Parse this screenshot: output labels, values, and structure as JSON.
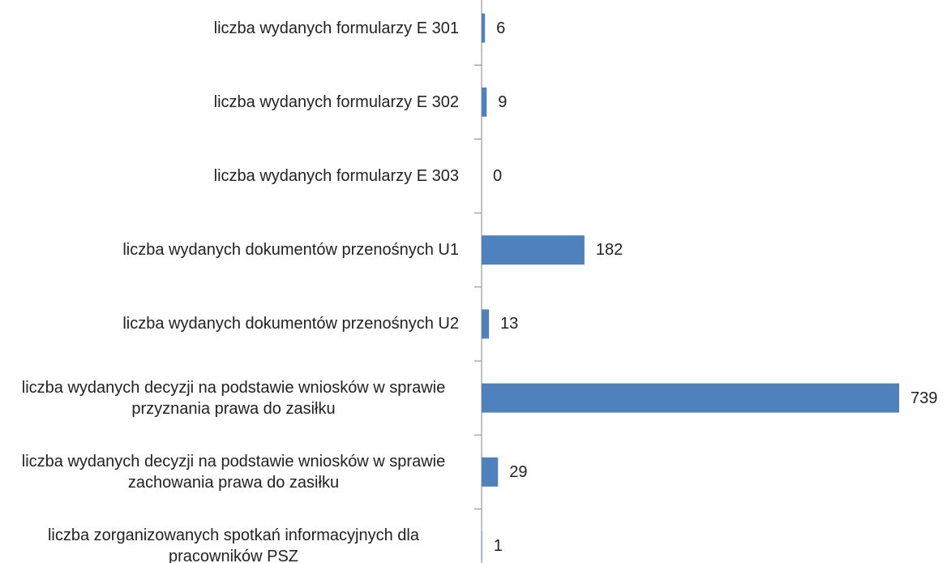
{
  "chart_data": {
    "type": "bar",
    "orientation": "horizontal",
    "categories": [
      "liczba wydanych formularzy E 301",
      "liczba wydanych formularzy E 302",
      "liczba wydanych formularzy E 303",
      "liczba wydanych dokumentów przenośnych U1",
      "liczba wydanych dokumentów przenośnych U2",
      "liczba wydanych decyzji na podstawie wniosków w sprawie przyznania prawa do zasiłku",
      "liczba wydanych decyzji na podstawie wniosków w sprawie zachowania prawa do zasiłku",
      "liczba zorganizowanych spotkań informacyjnych dla pracowników PSZ"
    ],
    "values": [
      6,
      9,
      0,
      182,
      13,
      739,
      29,
      1
    ],
    "color": "#4f81bd"
  }
}
